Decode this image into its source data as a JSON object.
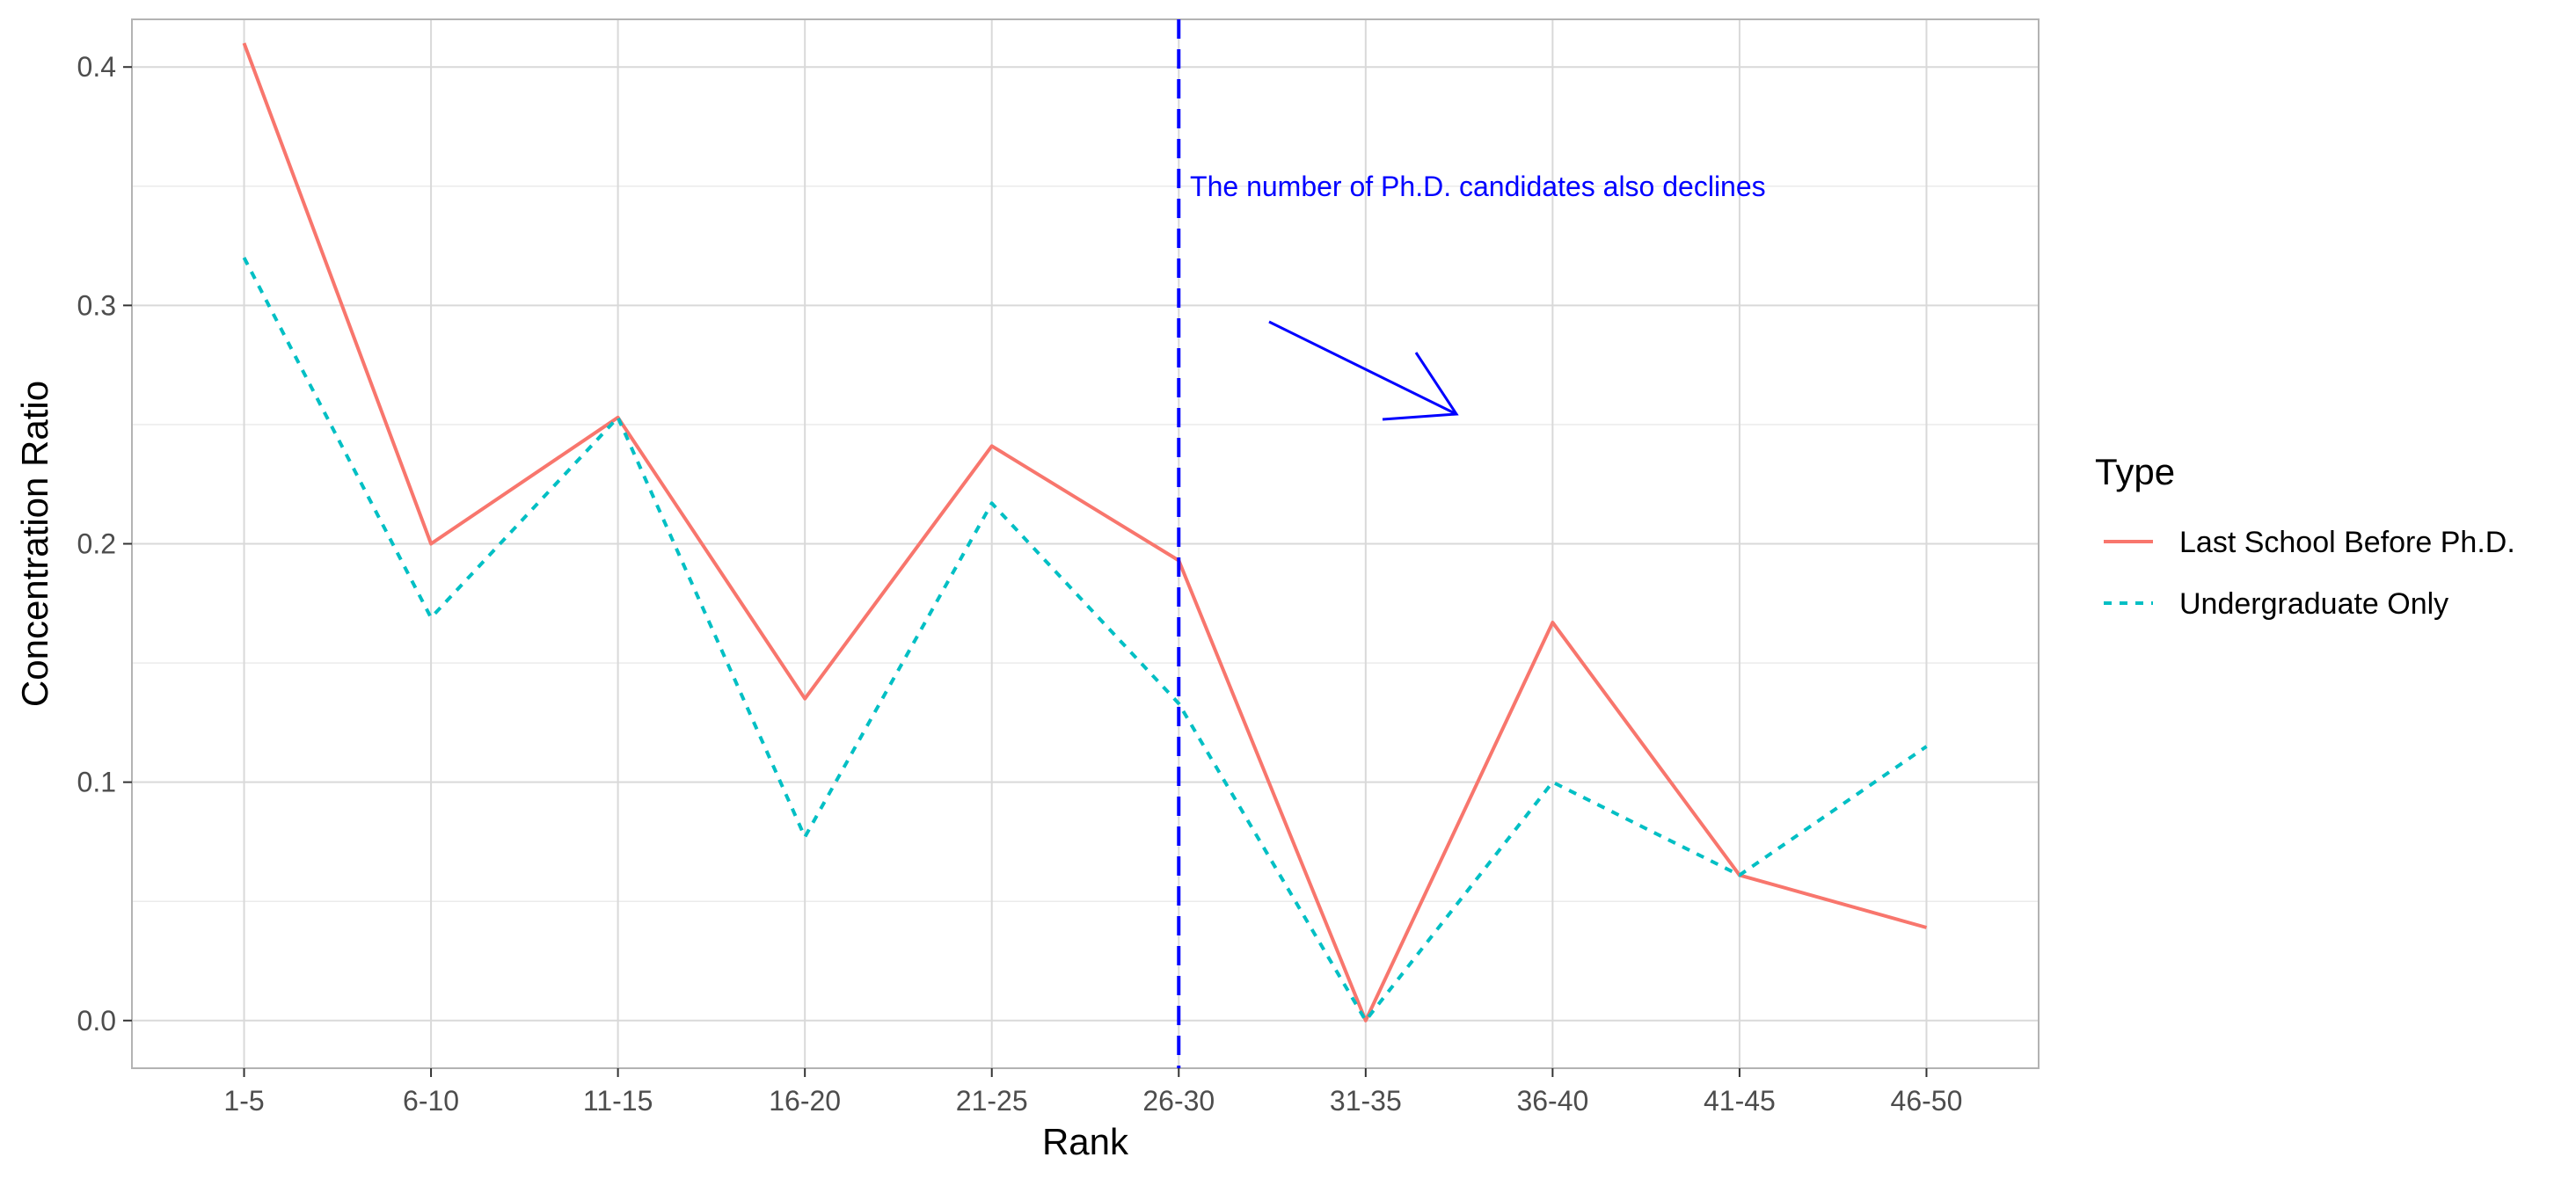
{
  "chart_data": {
    "type": "line",
    "title": "",
    "xlabel": "Rank",
    "ylabel": "Concentration Ratio",
    "categories": [
      "1-5",
      "6-10",
      "11-15",
      "16-20",
      "21-25",
      "26-30",
      "31-35",
      "36-40",
      "41-45",
      "46-50"
    ],
    "ylim": [
      -0.02,
      0.42
    ],
    "yticks": [
      0.0,
      0.1,
      0.2,
      0.3,
      0.4
    ],
    "ytick_labels": [
      "0.0",
      "0.1",
      "0.2",
      "0.3",
      "0.4"
    ],
    "grid": true,
    "legend": {
      "title": "Type",
      "position": "right"
    },
    "series": [
      {
        "name": "Last School Before Ph.D.",
        "color": "#F8766D",
        "line_style": "solid",
        "values": [
          0.41,
          0.2,
          0.253,
          0.135,
          0.241,
          0.193,
          0.0,
          0.167,
          0.061,
          0.039
        ]
      },
      {
        "name": "Undergraduate Only",
        "color": "#00BFC4",
        "line_style": "dotted",
        "values": [
          0.32,
          0.169,
          0.253,
          0.077,
          0.217,
          0.133,
          0.0,
          0.1,
          0.061,
          0.115
        ]
      }
    ],
    "vline": {
      "category": "26-30",
      "color": "#0000FF",
      "line_style": "dashed"
    },
    "annotation": {
      "text": "The number of Ph.D. candidates also declines",
      "color": "#0000FF",
      "anchor_category_index": 6.6,
      "anchor_y": 0.35
    }
  }
}
